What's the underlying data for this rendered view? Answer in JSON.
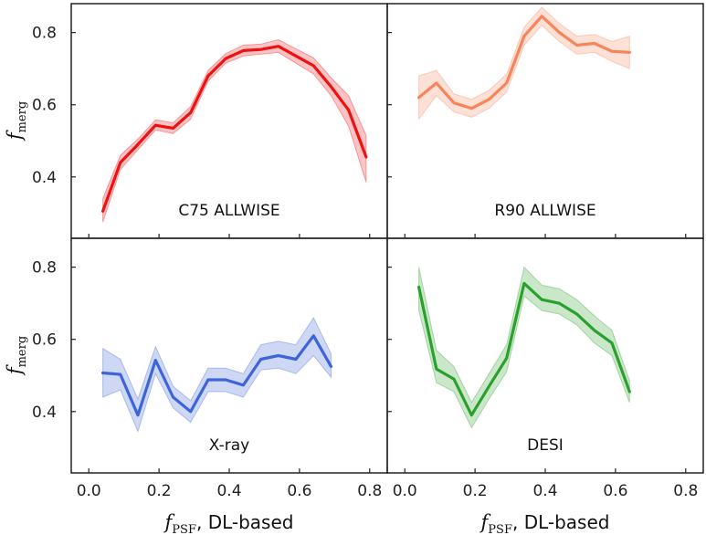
{
  "chart_data": [
    {
      "type": "line",
      "panel": "top-left",
      "label": "C75 ALLWISE",
      "color": "#ee1111",
      "xlim": [
        -0.05,
        0.85
      ],
      "ylim": [
        0.23,
        0.88
      ],
      "x": [
        0.04,
        0.09,
        0.14,
        0.19,
        0.24,
        0.29,
        0.34,
        0.39,
        0.44,
        0.49,
        0.54,
        0.59,
        0.64,
        0.69,
        0.74,
        0.79
      ],
      "y": [
        0.305,
        0.44,
        0.49,
        0.543,
        0.535,
        0.578,
        0.68,
        0.728,
        0.75,
        0.753,
        0.762,
        0.735,
        0.708,
        0.65,
        0.585,
        0.455
      ],
      "y_lower": [
        0.275,
        0.42,
        0.475,
        0.53,
        0.52,
        0.56,
        0.665,
        0.715,
        0.735,
        0.74,
        0.745,
        0.715,
        0.685,
        0.625,
        0.54,
        0.385
      ],
      "y_upper": [
        0.34,
        0.46,
        0.505,
        0.558,
        0.55,
        0.595,
        0.695,
        0.742,
        0.765,
        0.768,
        0.78,
        0.755,
        0.73,
        0.675,
        0.625,
        0.515
      ]
    },
    {
      "type": "line",
      "panel": "top-right",
      "label": "R90 ALLWISE",
      "color": "#f7845a",
      "xlim": [
        -0.05,
        0.85
      ],
      "ylim": [
        0.23,
        0.88
      ],
      "x": [
        0.04,
        0.09,
        0.14,
        0.19,
        0.24,
        0.29,
        0.34,
        0.39,
        0.44,
        0.49,
        0.54,
        0.59,
        0.64
      ],
      "y": [
        0.62,
        0.66,
        0.605,
        0.59,
        0.615,
        0.66,
        0.79,
        0.845,
        0.8,
        0.765,
        0.77,
        0.748,
        0.745
      ],
      "y_lower": [
        0.56,
        0.625,
        0.58,
        0.565,
        0.59,
        0.635,
        0.765,
        0.82,
        0.775,
        0.74,
        0.745,
        0.72,
        0.7
      ],
      "y_upper": [
        0.68,
        0.695,
        0.63,
        0.615,
        0.64,
        0.685,
        0.815,
        0.87,
        0.825,
        0.79,
        0.795,
        0.775,
        0.79
      ]
    },
    {
      "type": "line",
      "panel": "bottom-left",
      "label": "X-ray",
      "color": "#3d64d8",
      "xlim": [
        -0.05,
        0.85
      ],
      "ylim": [
        0.23,
        0.88
      ],
      "x": [
        0.04,
        0.09,
        0.14,
        0.19,
        0.24,
        0.29,
        0.34,
        0.39,
        0.44,
        0.49,
        0.54,
        0.59,
        0.64,
        0.69
      ],
      "y": [
        0.507,
        0.503,
        0.39,
        0.542,
        0.44,
        0.4,
        0.488,
        0.488,
        0.473,
        0.545,
        0.555,
        0.545,
        0.61,
        0.525
      ],
      "y_lower": [
        0.44,
        0.46,
        0.345,
        0.505,
        0.41,
        0.37,
        0.455,
        0.455,
        0.44,
        0.515,
        0.52,
        0.505,
        0.555,
        0.495
      ],
      "y_upper": [
        0.575,
        0.545,
        0.435,
        0.58,
        0.47,
        0.43,
        0.52,
        0.52,
        0.505,
        0.585,
        0.595,
        0.585,
        0.66,
        0.56
      ]
    },
    {
      "type": "line",
      "panel": "bottom-right",
      "label": "DESI",
      "color": "#2ca02c",
      "xlim": [
        -0.05,
        0.85
      ],
      "ylim": [
        0.23,
        0.88
      ],
      "x": [
        0.04,
        0.09,
        0.14,
        0.19,
        0.24,
        0.29,
        0.34,
        0.39,
        0.44,
        0.49,
        0.54,
        0.59,
        0.64
      ],
      "y": [
        0.745,
        0.518,
        0.49,
        0.39,
        0.47,
        0.548,
        0.755,
        0.71,
        0.7,
        0.67,
        0.625,
        0.59,
        0.455
      ],
      "y_lower": [
        0.68,
        0.48,
        0.455,
        0.355,
        0.435,
        0.51,
        0.72,
        0.68,
        0.67,
        0.64,
        0.59,
        0.555,
        0.425
      ],
      "y_upper": [
        0.8,
        0.57,
        0.525,
        0.425,
        0.505,
        0.585,
        0.8,
        0.75,
        0.74,
        0.71,
        0.665,
        0.625,
        0.485
      ]
    }
  ],
  "axes": {
    "x_ticks": [
      "0.0",
      "0.2",
      "0.4",
      "0.6",
      "0.8"
    ],
    "x_tick_values": [
      0.0,
      0.2,
      0.4,
      0.6,
      0.8
    ],
    "y_ticks": [
      "0.4",
      "0.6",
      "0.8"
    ],
    "y_tick_values": [
      0.4,
      0.6,
      0.8
    ],
    "ylabel_main": "f",
    "ylabel_sub": "merg",
    "xlabel_main": "f",
    "xlabel_sub": "PSF",
    "xlabel_suffix": ", DL-based"
  }
}
